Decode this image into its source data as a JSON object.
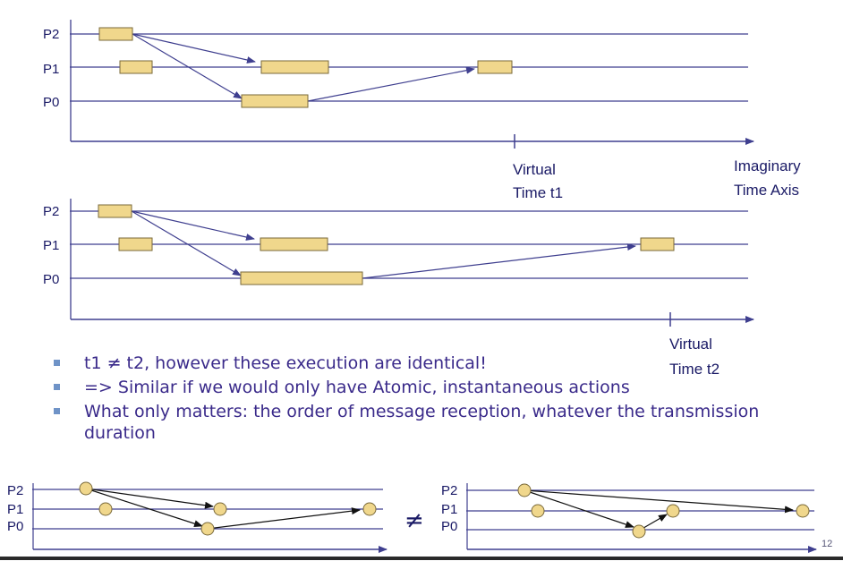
{
  "top_diagram": {
    "processes": [
      "P2",
      "P1",
      "P0"
    ],
    "time_marker": [
      "Virtual",
      "Time t1"
    ],
    "axis_label": [
      "Imaginary",
      "Time Axis"
    ]
  },
  "middle_diagram": {
    "processes": [
      "P2",
      "P1",
      "P0"
    ],
    "time_marker": [
      "Virtual",
      "Time t2"
    ]
  },
  "bullets": [
    "t1 ≠ t2, however these execution are identical!",
    "=> Similar if we would only have Atomic, instantaneous actions",
    "What only matters: the order of message reception, whatever the transmission duration"
  ],
  "bottom_left": {
    "processes": [
      "P2",
      "P1",
      "P0"
    ]
  },
  "bottom_right": {
    "processes": [
      "P2",
      "P1",
      "P0"
    ]
  },
  "not_equal_symbol": "≠",
  "slide_number": "12",
  "colors": {
    "line": "#3f3f8f",
    "box_fill": "#f0d78c",
    "box_stroke": "#7a6a3a",
    "text": "#1a1a66"
  }
}
